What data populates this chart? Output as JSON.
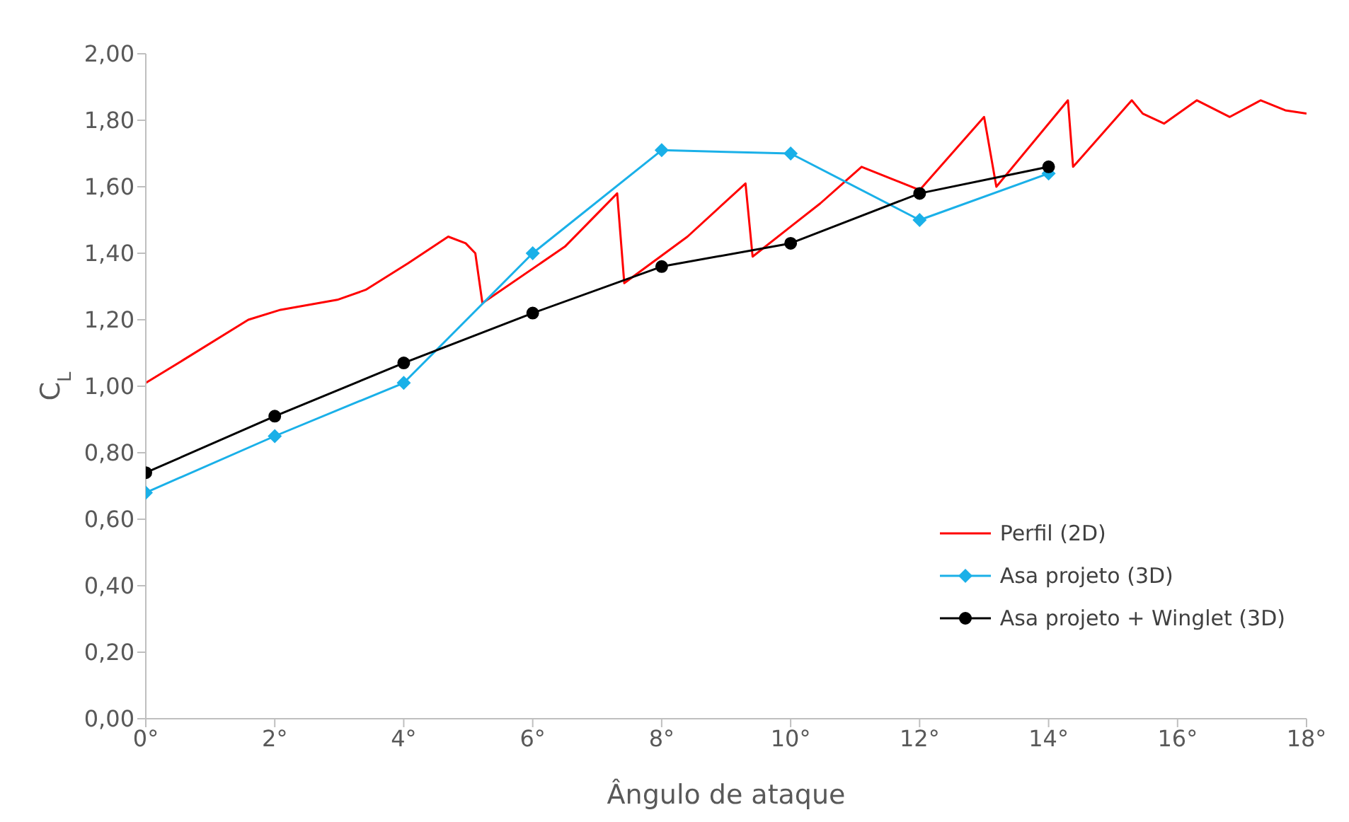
{
  "chart_data": {
    "type": "line",
    "xlabel": "Ângulo de ataque",
    "ylabel": "C$_{L}$",
    "xlim": [
      0,
      18
    ],
    "xticks": [
      {
        "value": 0,
        "label": "0°"
      },
      {
        "value": 2,
        "label": "2°"
      },
      {
        "value": 4,
        "label": "4°"
      },
      {
        "value": 6,
        "label": "6°"
      },
      {
        "value": 8,
        "label": "8°"
      },
      {
        "value": 10,
        "label": "10°"
      },
      {
        "value": 12,
        "label": "12°"
      },
      {
        "value": 14,
        "label": "14°"
      },
      {
        "value": 16,
        "label": "16°"
      },
      {
        "value": 18,
        "label": "18°"
      }
    ],
    "ylim": [
      0,
      2
    ],
    "yticks": [
      {
        "value": 0,
        "label": "0,00"
      },
      {
        "value": 0.2,
        "label": "0,20"
      },
      {
        "value": 0.4,
        "label": "0,40"
      },
      {
        "value": 0.6,
        "label": "0,60"
      },
      {
        "value": 0.8,
        "label": "0,80"
      },
      {
        "value": 1,
        "label": "1,00"
      },
      {
        "value": 1.2,
        "label": "1,20"
      },
      {
        "value": 1.4,
        "label": "1,40"
      },
      {
        "value": 1.6,
        "label": "1,60"
      },
      {
        "value": 1.8,
        "label": "1,80"
      },
      {
        "value": 2,
        "label": "2,00"
      }
    ],
    "grid": false,
    "legend": "bottom right",
    "line_style": "solid",
    "series": [
      {
        "name": "Perfil (2D)",
        "color": "#ff0000",
        "marker": "none",
        "x": [
          0,
          0.59,
          1.59,
          2.09,
          2.97,
          3.41,
          4.07,
          4.69,
          4.96,
          5.11,
          5.22,
          6.5,
          7.31,
          7.42,
          8.4,
          9.3,
          9.41,
          10,
          10.46,
          11.1,
          12,
          13,
          13.19,
          14.3,
          14.38,
          15.29,
          15.46,
          15.79,
          16.3,
          16.81,
          17.29,
          17.67,
          18
        ],
        "values": [
          1.01,
          1.08,
          1.2,
          1.23,
          1.26,
          1.29,
          1.37,
          1.45,
          1.43,
          1.4,
          1.25,
          1.42,
          1.58,
          1.31,
          1.45,
          1.61,
          1.39,
          1.48,
          1.55,
          1.66,
          1.59,
          1.81,
          1.6,
          1.86,
          1.66,
          1.86,
          1.82,
          1.79,
          1.86,
          1.81,
          1.86,
          1.83,
          1.82
        ]
      },
      {
        "name": "Asa projeto (3D)",
        "color": "#1ab0e8",
        "marker": "diamond",
        "x": [
          0,
          2,
          4,
          6,
          8,
          10,
          12,
          14
        ],
        "values": [
          0.68,
          0.85,
          1.01,
          1.4,
          1.71,
          1.7,
          1.5,
          1.64
        ]
      },
      {
        "name": "Asa projeto + Winglet (3D)",
        "color": "#000000",
        "marker": "circle",
        "x": [
          0,
          2,
          4,
          6,
          8,
          10,
          12,
          14
        ],
        "values": [
          0.74,
          0.91,
          1.07,
          1.22,
          1.36,
          1.43,
          1.58,
          1.66
        ]
      }
    ]
  }
}
